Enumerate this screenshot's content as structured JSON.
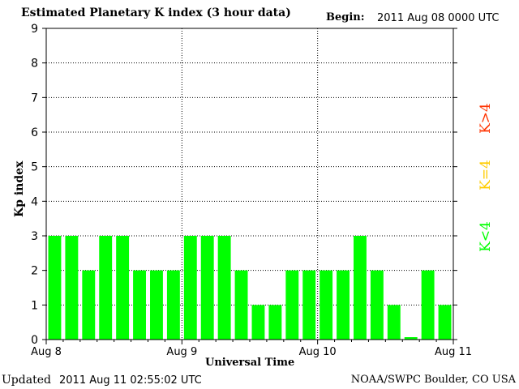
{
  "header": {
    "title": "Estimated Planetary K index (3 hour data)",
    "begin_label": "Begin:",
    "begin_value": "2011 Aug 08 0000 UTC"
  },
  "footer": {
    "updated_label": "Updated",
    "updated_value": "2011 Aug 11 02:55:02 UTC",
    "source": "NOAA/SWPC Boulder, CO USA"
  },
  "legend": {
    "high": "K>4",
    "equal": "K=4",
    "low": "K<4"
  },
  "colors": {
    "low": "#00ff00",
    "equal": "#ffcc00",
    "high": "#ff3300"
  },
  "chart_data": {
    "type": "bar",
    "ylabel": "Kp index",
    "xlabel": "Universal Time",
    "ylim": [
      0,
      9
    ],
    "yticks": [
      0,
      1,
      2,
      3,
      4,
      5,
      6,
      7,
      8,
      9
    ],
    "xticks": [
      "Aug 8",
      "Aug 9",
      "Aug 10",
      "Aug 11"
    ],
    "values": [
      3,
      3,
      2,
      3,
      3,
      2,
      2,
      2,
      3,
      3,
      3,
      2,
      1,
      1,
      2,
      2,
      2,
      2,
      3,
      2,
      1,
      0.07,
      2,
      1
    ],
    "grid": true
  }
}
